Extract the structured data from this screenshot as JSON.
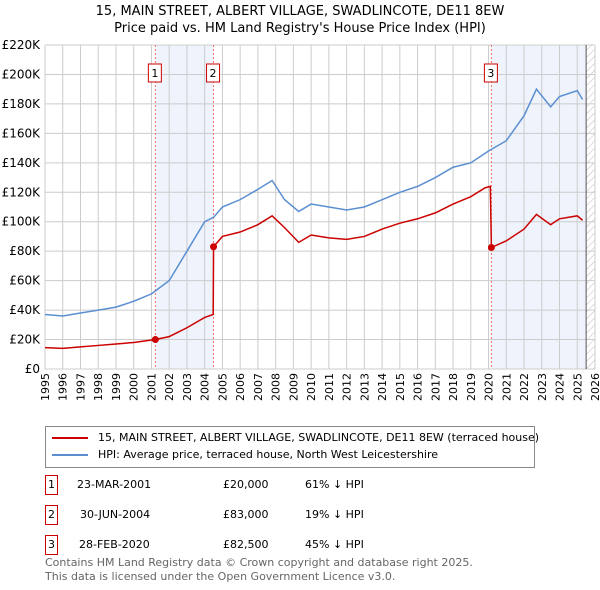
{
  "title": "15, MAIN STREET, ALBERT VILLAGE, SWADLINCOTE, DE11 8EW",
  "subtitle": "Price paid vs. HM Land Registry's House Price Index (HPI)",
  "chart_data": {
    "type": "line",
    "xlim": [
      1995,
      2026
    ],
    "ylim": [
      0,
      220000
    ],
    "x_ticks": [
      "1995",
      "1996",
      "1997",
      "1998",
      "1999",
      "2000",
      "2001",
      "2002",
      "2003",
      "2004",
      "2005",
      "2006",
      "2007",
      "2008",
      "2009",
      "2010",
      "2011",
      "2012",
      "2013",
      "2014",
      "2015",
      "2016",
      "2017",
      "2018",
      "2019",
      "2020",
      "2021",
      "2022",
      "2023",
      "2024",
      "2025",
      "2026"
    ],
    "y_ticks": [
      {
        "v": 0,
        "label": "£0"
      },
      {
        "v": 20000,
        "label": "£20K"
      },
      {
        "v": 40000,
        "label": "£40K"
      },
      {
        "v": 60000,
        "label": "£60K"
      },
      {
        "v": 80000,
        "label": "£80K"
      },
      {
        "v": 100000,
        "label": "£100K"
      },
      {
        "v": 120000,
        "label": "£120K"
      },
      {
        "v": 140000,
        "label": "£140K"
      },
      {
        "v": 160000,
        "label": "£160K"
      },
      {
        "v": 180000,
        "label": "£180K"
      },
      {
        "v": 200000,
        "label": "£200K"
      },
      {
        "v": 220000,
        "label": "£220K"
      }
    ],
    "grid": true,
    "series": [
      {
        "name": "15, MAIN STREET, ALBERT VILLAGE, SWADLINCOTE, DE11 8EW (terraced house)",
        "color": "#cc0000",
        "points": [
          [
            1995,
            14500
          ],
          [
            1996,
            14000
          ],
          [
            1997,
            15000
          ],
          [
            1998,
            16000
          ],
          [
            1999,
            17000
          ],
          [
            2000,
            18000
          ],
          [
            2001.22,
            20000
          ],
          [
            2002,
            22000
          ],
          [
            2003,
            28000
          ],
          [
            2004,
            35000
          ],
          [
            2004.48,
            37000
          ],
          [
            2004.5,
            83000
          ],
          [
            2005,
            90000
          ],
          [
            2006,
            93000
          ],
          [
            2007,
            98000
          ],
          [
            2007.8,
            104000
          ],
          [
            2008.5,
            96000
          ],
          [
            2009.3,
            86000
          ],
          [
            2010,
            91000
          ],
          [
            2011,
            89000
          ],
          [
            2012,
            88000
          ],
          [
            2013,
            90000
          ],
          [
            2014,
            95000
          ],
          [
            2015,
            99000
          ],
          [
            2016,
            102000
          ],
          [
            2017,
            106000
          ],
          [
            2018,
            112000
          ],
          [
            2019,
            117000
          ],
          [
            2019.8,
            123000
          ],
          [
            2020.1,
            124000
          ],
          [
            2020.16,
            82500
          ],
          [
            2021,
            87000
          ],
          [
            2022,
            95000
          ],
          [
            2022.7,
            105000
          ],
          [
            2023.5,
            98000
          ],
          [
            2024,
            102000
          ],
          [
            2025,
            104000
          ],
          [
            2025.3,
            101000
          ]
        ]
      },
      {
        "name": "HPI: Average price, terraced house, North West Leicestershire",
        "color": "#5b8fd1",
        "points": [
          [
            1995,
            37000
          ],
          [
            1996,
            36000
          ],
          [
            1997,
            38000
          ],
          [
            1998,
            40000
          ],
          [
            1999,
            42000
          ],
          [
            2000,
            46000
          ],
          [
            2001,
            51000
          ],
          [
            2002,
            60000
          ],
          [
            2003,
            80000
          ],
          [
            2004,
            100000
          ],
          [
            2004.5,
            103000
          ],
          [
            2005,
            110000
          ],
          [
            2006,
            115000
          ],
          [
            2007,
            122000
          ],
          [
            2007.8,
            128000
          ],
          [
            2008.5,
            115000
          ],
          [
            2009.3,
            107000
          ],
          [
            2010,
            112000
          ],
          [
            2011,
            110000
          ],
          [
            2012,
            108000
          ],
          [
            2013,
            110000
          ],
          [
            2014,
            115000
          ],
          [
            2015,
            120000
          ],
          [
            2016,
            124000
          ],
          [
            2017,
            130000
          ],
          [
            2018,
            137000
          ],
          [
            2019,
            140000
          ],
          [
            2020,
            148000
          ],
          [
            2021,
            155000
          ],
          [
            2022,
            172000
          ],
          [
            2022.7,
            190000
          ],
          [
            2023.5,
            178000
          ],
          [
            2024,
            185000
          ],
          [
            2025,
            189000
          ],
          [
            2025.3,
            183000
          ]
        ]
      }
    ],
    "markers": [
      {
        "label": "1",
        "x": 2001.22,
        "price": 20000
      },
      {
        "label": "2",
        "x": 2004.5,
        "price": 83000
      },
      {
        "label": "3",
        "x": 2020.16,
        "price": 82500
      }
    ],
    "shaded": [
      [
        2001.22,
        2004.5
      ],
      [
        2020.16,
        2025.5
      ]
    ],
    "hatch_from": 2025.5
  },
  "legend": [
    "15, MAIN STREET, ALBERT VILLAGE, SWADLINCOTE, DE11 8EW (terraced house)",
    "HPI: Average price, terraced house, North West Leicestershire"
  ],
  "transactions": [
    {
      "n": "1",
      "date": "23-MAR-2001",
      "price": "£20,000",
      "hpi": "61% ↓ HPI"
    },
    {
      "n": "2",
      "date": "30-JUN-2004",
      "price": "£83,000",
      "hpi": "19% ↓ HPI"
    },
    {
      "n": "3",
      "date": "28-FEB-2020",
      "price": "£82,500",
      "hpi": "45% ↓ HPI"
    }
  ],
  "footer": [
    "Contains HM Land Registry data © Crown copyright and database right 2025.",
    "This data is licensed under the Open Government Licence v3.0."
  ]
}
